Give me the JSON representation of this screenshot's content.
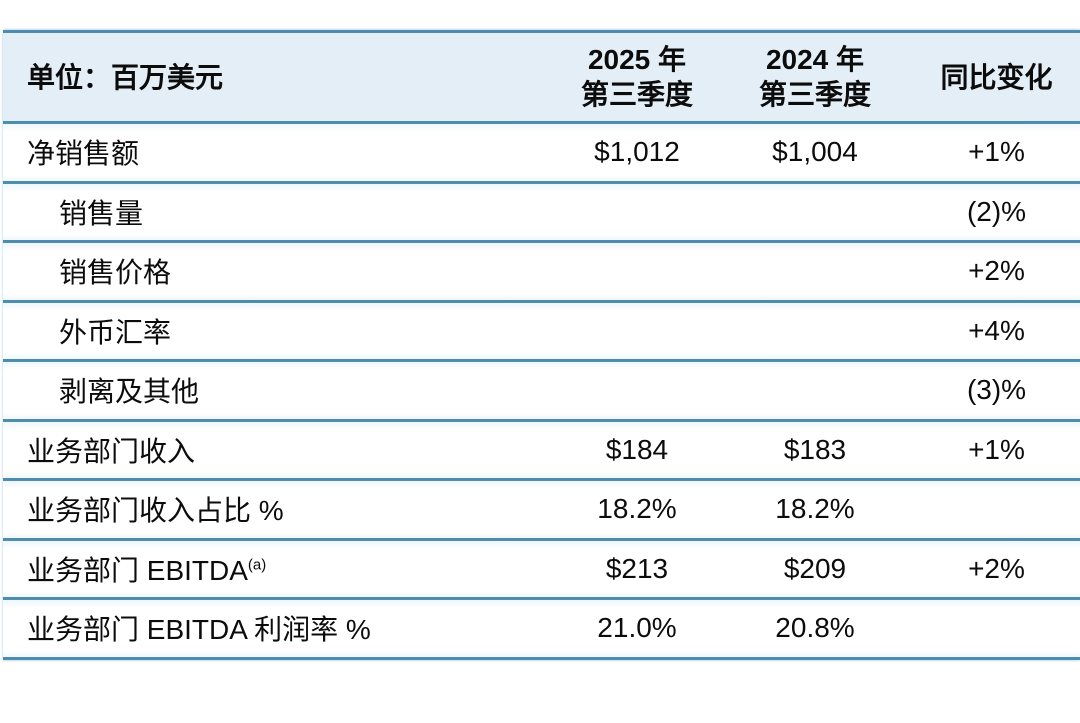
{
  "table": {
    "unit_label": "单位：百万美元",
    "col_headers": [
      {
        "line1": "2025 年",
        "line2": "第三季度"
      },
      {
        "line1": "2024 年",
        "line2": "第三季度"
      },
      {
        "line1": "同比变化",
        "line2": ""
      }
    ],
    "rows": [
      {
        "label": "净销售额",
        "sup": "",
        "indent": false,
        "v2025": "$1,012",
        "v2024": "$1,004",
        "yoy": "+1%"
      },
      {
        "label": "销售量",
        "sup": "",
        "indent": true,
        "v2025": "",
        "v2024": "",
        "yoy": "(2)%"
      },
      {
        "label": "销售价格",
        "sup": "",
        "indent": true,
        "v2025": "",
        "v2024": "",
        "yoy": "+2%"
      },
      {
        "label": "外币汇率",
        "sup": "",
        "indent": true,
        "v2025": "",
        "v2024": "",
        "yoy": "+4%"
      },
      {
        "label": "剥离及其他",
        "sup": "",
        "indent": true,
        "v2025": "",
        "v2024": "",
        "yoy": "(3)%"
      },
      {
        "label": "业务部门收入",
        "sup": "",
        "indent": false,
        "v2025": "$184",
        "v2024": "$183",
        "yoy": "+1%"
      },
      {
        "label": "业务部门收入占比 %",
        "sup": "",
        "indent": false,
        "v2025": "18.2%",
        "v2024": "18.2%",
        "yoy": ""
      },
      {
        "label": "业务部门 EBITDA",
        "sup": "(a)",
        "indent": false,
        "v2025": "$213",
        "v2024": "$209",
        "yoy": "+2%"
      },
      {
        "label": "业务部门 EBITDA 利润率 %",
        "sup": "",
        "indent": false,
        "v2025": "21.0%",
        "v2024": "20.8%",
        "yoy": ""
      }
    ],
    "colors": {
      "border": "#4e8cad",
      "header_bg": "#e4eef7",
      "text": "#0c0c0c",
      "page_bg": "#ffffff"
    }
  },
  "chart_data": {
    "type": "table",
    "title": "单位：百万美元",
    "columns": [
      "单位：百万美元",
      "2025 年第三季度",
      "2024 年第三季度",
      "同比变化"
    ],
    "rows": [
      [
        "净销售额",
        "$1,012",
        "$1,004",
        "+1%"
      ],
      [
        "销售量",
        "",
        "",
        "(2)%"
      ],
      [
        "销售价格",
        "",
        "",
        "+2%"
      ],
      [
        "外币汇率",
        "",
        "",
        "+4%"
      ],
      [
        "剥离及其他",
        "",
        "",
        "(3)%"
      ],
      [
        "业务部门收入",
        "$184",
        "$183",
        "+1%"
      ],
      [
        "业务部门收入占比 %",
        "18.2%",
        "18.2%",
        ""
      ],
      [
        "业务部门 EBITDA(a)",
        "$213",
        "$209",
        "+2%"
      ],
      [
        "业务部门 EBITDA 利润率 %",
        "21.0%",
        "20.8%",
        ""
      ]
    ],
    "legend_position": "none",
    "grid": "horizontal-rules-only"
  }
}
